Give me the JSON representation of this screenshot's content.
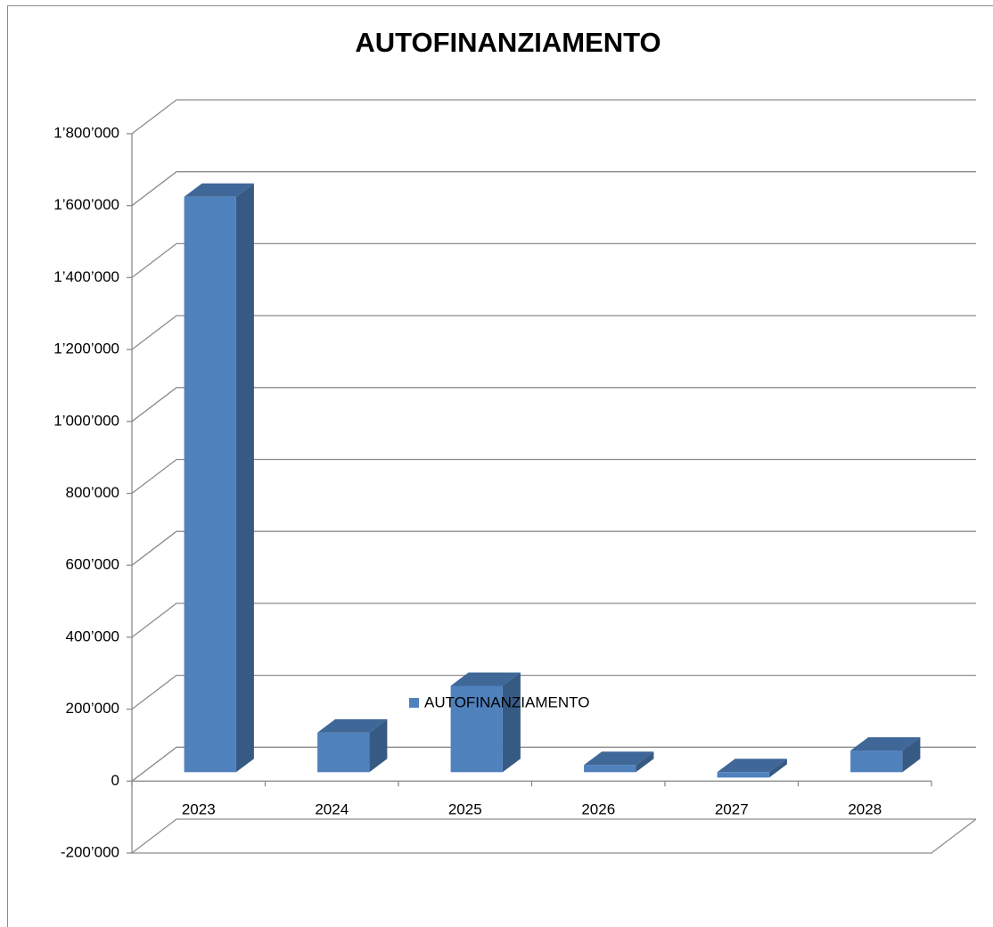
{
  "chart_data": {
    "type": "bar3d",
    "title": "AUTOFINANZIAMENTO",
    "categories": [
      "2023",
      "2024",
      "2025",
      "2026",
      "2027",
      "2028"
    ],
    "series": [
      {
        "name": "AUTOFINANZIAMENTO",
        "color": "#4f81bd",
        "values": [
          1600000,
          110000,
          240000,
          20000,
          -15000,
          60000
        ]
      }
    ],
    "ylim": [
      -200000,
      1800000
    ],
    "yticks": [
      {
        "value": -200000,
        "label": "-200’000"
      },
      0,
      {
        "value": 200000,
        "label": "200’000"
      },
      {
        "value": 400000,
        "label": "400’000"
      },
      {
        "value": 600000,
        "label": "600’000"
      },
      {
        "value": 800000,
        "label": "800’000"
      },
      {
        "value": 1000000,
        "label": "1’000’000"
      },
      {
        "value": 1200000,
        "label": "1’200’000"
      },
      {
        "value": 1400000,
        "label": "1’400’000"
      },
      {
        "value": 1600000,
        "label": "1’600’000"
      },
      {
        "value": 1800000,
        "label": "1’800’000"
      }
    ],
    "grid": true,
    "legend": "bottom"
  }
}
